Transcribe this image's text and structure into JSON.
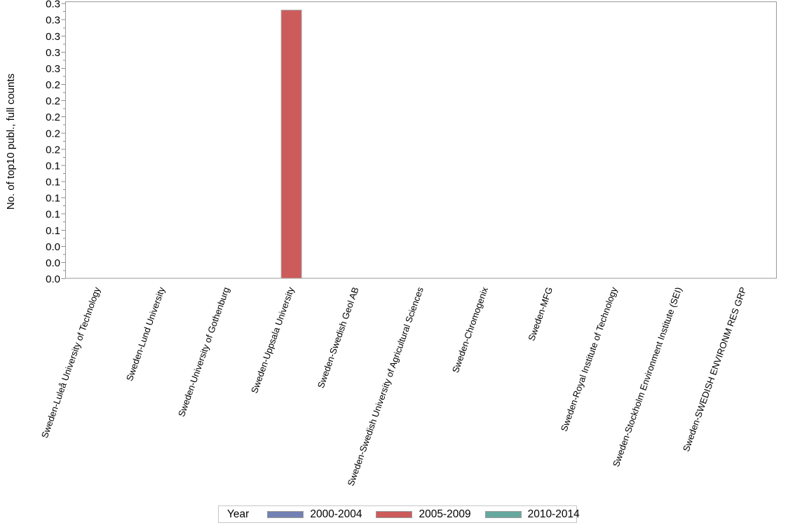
{
  "chart_data": {
    "type": "bar",
    "title": "",
    "xlabel": "",
    "ylabel": "No. of top10 publ., full counts",
    "legend_title": "Year",
    "legend_position": "bottom",
    "grid": false,
    "categories": [
      "Sweden-Luleå University of Technology",
      "Sweden-Lund University",
      "Sweden-University of Gothenburg",
      "Sweden-Uppsala University",
      "Sweden-Swedish Geol AB",
      "Sweden-Swedish University of Agricultural Sciences",
      "Sweden-Chromogenix",
      "Sweden-MFG",
      "Sweden-Royal Institute of Technology",
      "Sweden-Stockholm Environment Institute (SEI)",
      "Sweden-SWEDISH ENVIRONM RES GRP"
    ],
    "series": [
      {
        "name": "2000-2004",
        "color": "#7380b4",
        "values": [
          0,
          0,
          0,
          0,
          0,
          0,
          0,
          0,
          0,
          0,
          0
        ]
      },
      {
        "name": "2005-2009",
        "color": "#cc5b5b",
        "values": [
          0,
          0,
          0,
          0.332,
          0,
          0,
          0,
          0,
          0,
          0,
          0
        ]
      },
      {
        "name": "2010-2014",
        "color": "#66a79e",
        "values": [
          0,
          0,
          0,
          0,
          0,
          0,
          0,
          0,
          0,
          0,
          0
        ]
      }
    ],
    "y_axis": {
      "min": 0,
      "max": 0.344,
      "major_tick_step": 0.02,
      "minor_tick_step": 0.01,
      "tick_label_decimals": 1
    }
  }
}
